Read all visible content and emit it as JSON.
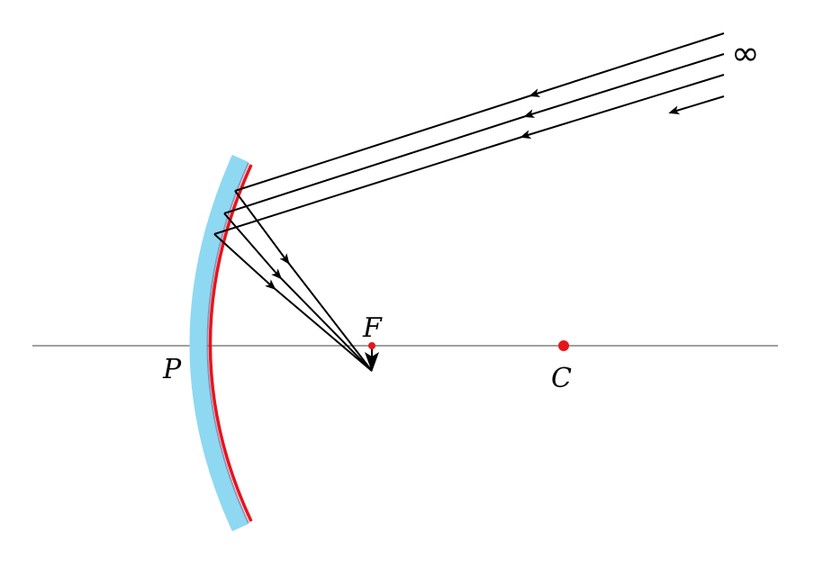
{
  "labels": {
    "pole": "P",
    "focus": "F",
    "center": "C",
    "infinity": "∞"
  },
  "colors": {
    "axis": "#808080",
    "mirror_back": "#8ed8f2",
    "mirror_surface": "#e8141c",
    "points": "#e8141c",
    "rays": "#000000"
  }
}
